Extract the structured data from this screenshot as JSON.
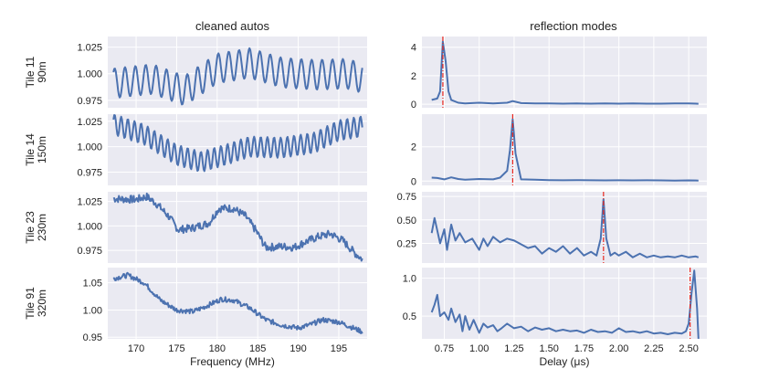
{
  "chart_data": [
    {
      "type": "line",
      "panel": "left",
      "title": "cleaned autos",
      "xlabel": "Frequency (MHz)",
      "xlim": [
        166.5,
        198.5
      ],
      "xticks": [
        170,
        175,
        180,
        185,
        190,
        195
      ],
      "xtick_labels": [
        "170",
        "175",
        "180",
        "185",
        "190",
        "195"
      ],
      "rows": [
        {
          "ylabel_line1": "Tile 11",
          "ylabel_line2": "90m",
          "ylim": [
            0.968,
            1.035
          ],
          "yticks": [
            0.975,
            1.0,
            1.025
          ],
          "ytick_labels": [
            "0.975",
            "1.000",
            "1.025"
          ],
          "series": {
            "kind": "ripple",
            "fstart": 167.2,
            "fend": 197.9,
            "base": [
              [
                167.2,
                0.991
              ],
              [
                172,
                0.995
              ],
              [
                176,
                0.984
              ],
              [
                180,
                1.005
              ],
              [
                184,
                1.01
              ],
              [
                188,
                1.001
              ],
              [
                192,
                0.999
              ],
              [
                196,
                1.0
              ],
              [
                197.9,
                0.996
              ]
            ],
            "amp": 0.014,
            "period": 1.28,
            "phase": 3.2
          }
        },
        {
          "ylabel_line1": "Tile 14",
          "ylabel_line2": "150m",
          "ylim": [
            0.962,
            1.032
          ],
          "yticks": [
            0.975,
            1.0,
            1.025
          ],
          "ytick_labels": [
            "0.975",
            "1.000",
            "1.025"
          ],
          "series": {
            "kind": "ripple",
            "fstart": 167.2,
            "fend": 197.9,
            "base": [
              [
                167.2,
                1.022
              ],
              [
                171,
                1.012
              ],
              [
                175,
                0.992
              ],
              [
                178,
                0.985
              ],
              [
                181,
                0.992
              ],
              [
                184,
                1.0
              ],
              [
                188,
                0.999
              ],
              [
                192,
                1.004
              ],
              [
                195,
                1.016
              ],
              [
                197.9,
                1.02
              ]
            ],
            "amp": 0.01,
            "period": 0.82,
            "phase": 1.1
          }
        },
        {
          "ylabel_line1": "Tile 23",
          "ylabel_line2": "230m",
          "ylim": [
            0.962,
            1.035
          ],
          "yticks": [
            0.975,
            1.0,
            1.025
          ],
          "ytick_labels": [
            "0.975",
            "1.000",
            "1.025"
          ],
          "series": {
            "kind": "noisy",
            "fstart": 167.2,
            "fend": 197.9,
            "base": [
              [
                167.2,
                1.028
              ],
              [
                170,
                1.027
              ],
              [
                171.3,
                1.03
              ],
              [
                172.5,
                1.023
              ],
              [
                174,
                1.01
              ],
              [
                175.2,
                0.996
              ],
              [
                177,
                0.998
              ],
              [
                179,
                1.003
              ],
              [
                180.2,
                1.018
              ],
              [
                182,
                1.018
              ],
              [
                183.5,
                1.01
              ],
              [
                184.8,
                0.995
              ],
              [
                186,
                0.978
              ],
              [
                188,
                0.979
              ],
              [
                189.5,
                0.978
              ],
              [
                191,
                0.984
              ],
              [
                192.5,
                0.989
              ],
              [
                194,
                0.992
              ],
              [
                195.5,
                0.985
              ],
              [
                197,
                0.972
              ],
              [
                197.9,
                0.966
              ]
            ],
            "noise": 0.004
          }
        },
        {
          "ylabel_line1": "Tile 91",
          "ylabel_line2": "320m",
          "ylim": [
            0.947,
            1.078
          ],
          "yticks": [
            0.95,
            1.0,
            1.05
          ],
          "ytick_labels": [
            "0.95",
            "1.00",
            "1.05"
          ],
          "series": {
            "kind": "noisy",
            "fstart": 167.2,
            "fend": 197.9,
            "base": [
              [
                167.2,
                1.058
              ],
              [
                169,
                1.064
              ],
              [
                171,
                1.05
              ],
              [
                173,
                1.018
              ],
              [
                175,
                1.0
              ],
              [
                177,
                0.997
              ],
              [
                178.5,
                1.006
              ],
              [
                180.5,
                1.02
              ],
              [
                182,
                1.018
              ],
              [
                184,
                1.004
              ],
              [
                186,
                0.982
              ],
              [
                188,
                0.972
              ],
              [
                190,
                0.967
              ],
              [
                191.5,
                0.973
              ],
              [
                193,
                0.982
              ],
              [
                195,
                0.978
              ],
              [
                197.9,
                0.96
              ]
            ],
            "noise": 0.0045
          }
        }
      ]
    },
    {
      "type": "line",
      "panel": "right",
      "title": "reflection modes",
      "xlabel": "Delay (μs)",
      "xlim": [
        0.59,
        2.63
      ],
      "xticks": [
        0.75,
        1.0,
        1.25,
        1.5,
        1.75,
        2.0,
        2.25,
        2.5
      ],
      "xtick_labels": [
        "0.75",
        "1.00",
        "1.25",
        "1.50",
        "1.75",
        "2.00",
        "2.25",
        "2.50"
      ],
      "rows": [
        {
          "ylim": [
            -0.25,
            4.75
          ],
          "yticks": [
            0,
            2,
            4
          ],
          "ytick_labels": [
            "0",
            "2",
            "4"
          ],
          "marker_delay": 0.74,
          "series": {
            "x": [
              0.66,
              0.7,
              0.72,
              0.74,
              0.76,
              0.78,
              0.8,
              0.85,
              0.9,
              1.0,
              1.1,
              1.2,
              1.24,
              1.3,
              1.4,
              1.5,
              1.6,
              1.7,
              1.8,
              1.9,
              2.0,
              2.1,
              2.2,
              2.3,
              2.4,
              2.5,
              2.57
            ],
            "y": [
              0.3,
              0.4,
              0.9,
              4.4,
              3.0,
              0.9,
              0.3,
              0.1,
              0.05,
              0.1,
              0.06,
              0.1,
              0.22,
              0.08,
              0.05,
              0.06,
              0.04,
              0.05,
              0.04,
              0.05,
              0.04,
              0.06,
              0.04,
              0.04,
              0.05,
              0.05,
              0.03
            ]
          }
        },
        {
          "ylim": [
            -0.25,
            3.9
          ],
          "yticks": [
            0,
            2
          ],
          "ytick_labels": [
            "0",
            "2"
          ],
          "marker_delay": 1.24,
          "series": {
            "x": [
              0.66,
              0.7,
              0.75,
              0.8,
              0.85,
              0.9,
              1.0,
              1.1,
              1.15,
              1.2,
              1.22,
              1.24,
              1.26,
              1.3,
              1.4,
              1.5,
              1.6,
              1.7,
              1.8,
              1.9,
              2.0,
              2.1,
              2.2,
              2.3,
              2.4,
              2.5,
              2.57
            ],
            "y": [
              0.2,
              0.18,
              0.1,
              0.22,
              0.12,
              0.08,
              0.12,
              0.1,
              0.2,
              0.6,
              1.8,
              3.6,
              1.6,
              0.1,
              0.08,
              0.06,
              0.05,
              0.06,
              0.05,
              0.04,
              0.05,
              0.04,
              0.05,
              0.04,
              0.03,
              0.04,
              0.03
            ]
          }
        },
        {
          "ylim": [
            0.04,
            0.8
          ],
          "yticks": [
            0.25,
            0.5,
            0.75
          ],
          "ytick_labels": [
            "0.25",
            "0.50",
            "0.75"
          ],
          "marker_delay": 1.89,
          "series": {
            "x": [
              0.66,
              0.68,
              0.72,
              0.75,
              0.77,
              0.8,
              0.83,
              0.86,
              0.9,
              0.95,
              1.0,
              1.03,
              1.06,
              1.1,
              1.15,
              1.2,
              1.25,
              1.3,
              1.35,
              1.4,
              1.45,
              1.5,
              1.55,
              1.6,
              1.65,
              1.7,
              1.75,
              1.8,
              1.84,
              1.87,
              1.89,
              1.91,
              1.94,
              1.97,
              2.0,
              2.05,
              2.1,
              2.15,
              2.2,
              2.25,
              2.3,
              2.35,
              2.4,
              2.45,
              2.5,
              2.55,
              2.57
            ],
            "y": [
              0.36,
              0.52,
              0.25,
              0.4,
              0.18,
              0.45,
              0.28,
              0.36,
              0.26,
              0.3,
              0.18,
              0.3,
              0.22,
              0.32,
              0.26,
              0.3,
              0.28,
              0.24,
              0.2,
              0.22,
              0.14,
              0.2,
              0.16,
              0.22,
              0.14,
              0.2,
              0.12,
              0.16,
              0.12,
              0.3,
              0.72,
              0.3,
              0.12,
              0.15,
              0.12,
              0.16,
              0.1,
              0.14,
              0.1,
              0.12,
              0.1,
              0.11,
              0.1,
              0.12,
              0.1,
              0.11,
              0.1
            ]
          }
        },
        {
          "ylim": [
            0.2,
            1.14
          ],
          "yticks": [
            0.5,
            1.0
          ],
          "ytick_labels": [
            "0.5",
            "1.0"
          ],
          "marker_delay": 2.51,
          "series": {
            "x": [
              0.66,
              0.68,
              0.7,
              0.72,
              0.75,
              0.78,
              0.8,
              0.83,
              0.86,
              0.88,
              0.9,
              0.93,
              0.96,
              1.0,
              1.03,
              1.06,
              1.1,
              1.13,
              1.16,
              1.2,
              1.25,
              1.3,
              1.35,
              1.4,
              1.45,
              1.5,
              1.55,
              1.6,
              1.65,
              1.7,
              1.75,
              1.8,
              1.85,
              1.9,
              1.95,
              2.0,
              2.05,
              2.1,
              2.15,
              2.2,
              2.25,
              2.3,
              2.35,
              2.4,
              2.45,
              2.48,
              2.5,
              2.52,
              2.54,
              2.56,
              2.57
            ],
            "y": [
              0.55,
              0.65,
              0.78,
              0.5,
              0.55,
              0.45,
              0.6,
              0.42,
              0.52,
              0.3,
              0.5,
              0.32,
              0.45,
              0.28,
              0.4,
              0.35,
              0.38,
              0.3,
              0.34,
              0.4,
              0.34,
              0.36,
              0.3,
              0.35,
              0.32,
              0.34,
              0.3,
              0.32,
              0.3,
              0.31,
              0.28,
              0.32,
              0.29,
              0.3,
              0.28,
              0.34,
              0.29,
              0.3,
              0.28,
              0.3,
              0.27,
              0.28,
              0.26,
              0.28,
              0.27,
              0.3,
              0.4,
              0.8,
              1.1,
              0.6,
              0.2
            ]
          }
        }
      ]
    }
  ]
}
